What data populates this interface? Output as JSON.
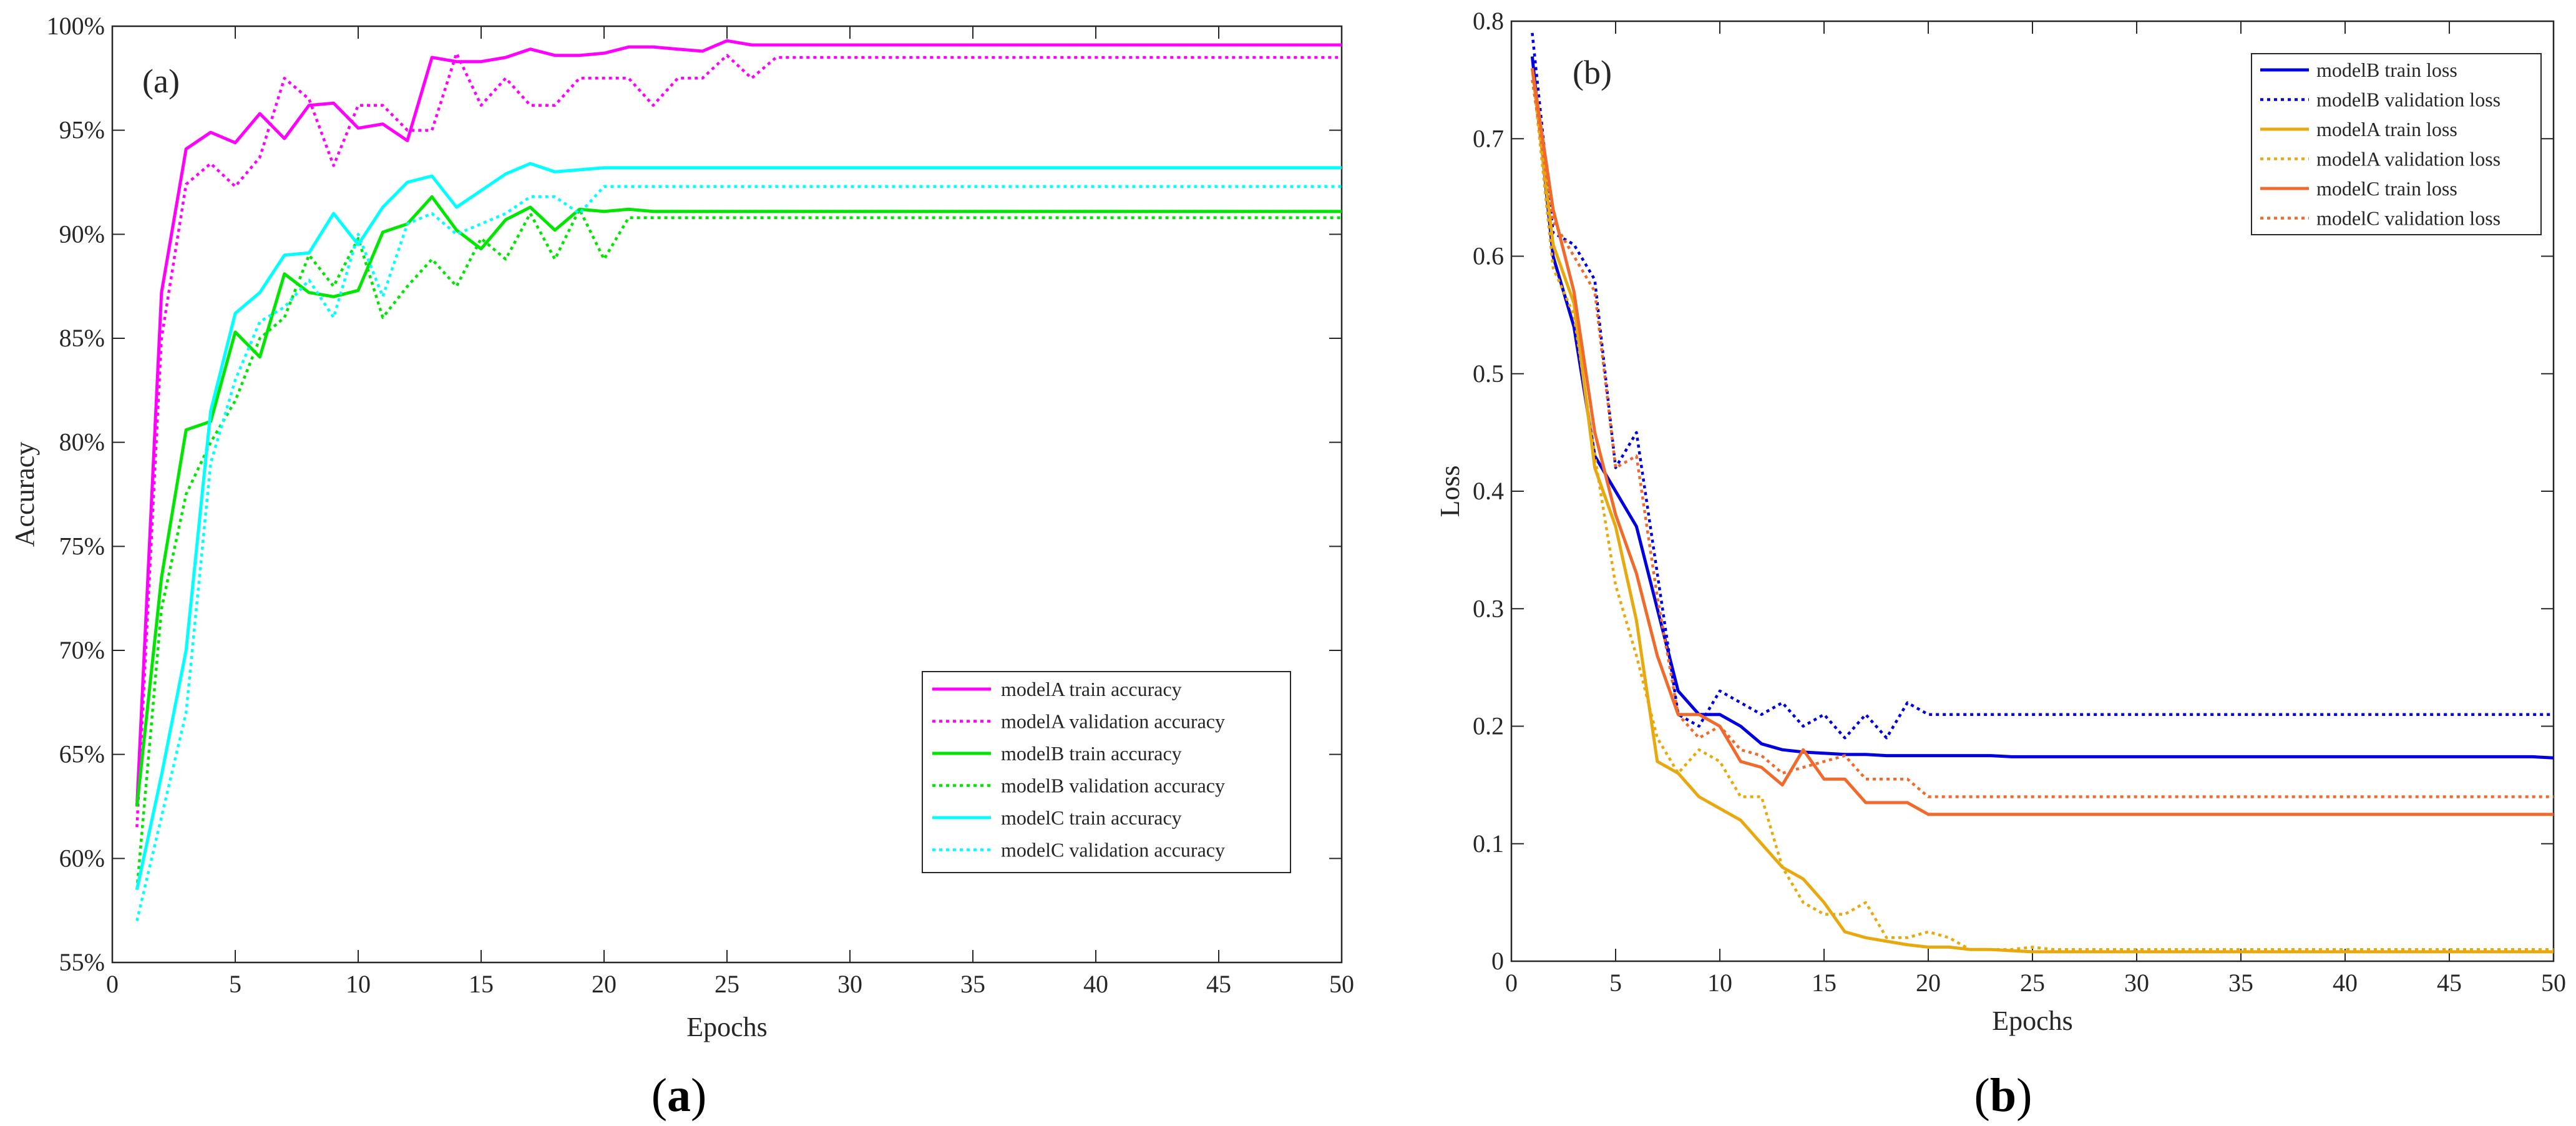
{
  "chart_data": [
    {
      "type": "line",
      "panel_label": "(a)",
      "caption_letter": "a",
      "xlabel": "Epochs",
      "ylabel": "Accuracy",
      "xlim": [
        0,
        50
      ],
      "ylim": [
        55,
        100
      ],
      "xticks": [
        0,
        5,
        10,
        15,
        20,
        25,
        30,
        35,
        40,
        45,
        50
      ],
      "yticks": [
        55,
        60,
        65,
        70,
        75,
        80,
        85,
        90,
        95,
        100
      ],
      "ytick_labels": [
        "55%",
        "60%",
        "65%",
        "70%",
        "75%",
        "80%",
        "85%",
        "90%",
        "95%",
        "100%"
      ],
      "grid": false,
      "legend_position": "bottom-right",
      "x": [
        1,
        2,
        3,
        4,
        5,
        6,
        7,
        8,
        9,
        10,
        11,
        12,
        13,
        14,
        15,
        16,
        17,
        18,
        19,
        20,
        21,
        22,
        23,
        24,
        25,
        26,
        27,
        28,
        29,
        30,
        31,
        32,
        33,
        34,
        35,
        36,
        37,
        38,
        39,
        40,
        41,
        42,
        43,
        44,
        45,
        46,
        47,
        48,
        49,
        50
      ],
      "series": [
        {
          "name": "modelA train accuracy",
          "color": "#ff00ff",
          "dash": "solid",
          "values": [
            62.5,
            87.2,
            94.1,
            94.9,
            94.4,
            95.8,
            94.6,
            96.2,
            96.3,
            95.1,
            95.3,
            94.5,
            98.5,
            98.3,
            98.3,
            98.5,
            98.9,
            98.6,
            98.6,
            98.7,
            99.0,
            99.0,
            98.9,
            98.8,
            99.3,
            99.1,
            99.1,
            99.1,
            99.1,
            99.1,
            99.1,
            99.1,
            99.1,
            99.1,
            99.1,
            99.1,
            99.1,
            99.1,
            99.1,
            99.1,
            99.1,
            99.1,
            99.1,
            99.1,
            99.1,
            99.1,
            99.1,
            99.1,
            99.1,
            99.1
          ]
        },
        {
          "name": "modelA validation accuracy",
          "color": "#ff00ff",
          "dash": "dotted",
          "values": [
            61.5,
            85.0,
            92.4,
            93.4,
            92.3,
            93.7,
            97.5,
            96.5,
            93.3,
            96.2,
            96.2,
            95.0,
            95.0,
            98.7,
            96.2,
            97.5,
            96.2,
            96.2,
            97.5,
            97.5,
            97.5,
            96.2,
            97.5,
            97.5,
            98.6,
            97.5,
            98.5,
            98.5,
            98.5,
            98.5,
            98.5,
            98.5,
            98.5,
            98.5,
            98.5,
            98.5,
            98.5,
            98.5,
            98.5,
            98.5,
            98.5,
            98.5,
            98.5,
            98.5,
            98.5,
            98.5,
            98.5,
            98.5,
            98.5,
            98.5
          ]
        },
        {
          "name": "modelB train accuracy",
          "color": "#00e600",
          "dash": "solid",
          "values": [
            62.5,
            73.5,
            80.6,
            81.0,
            85.3,
            84.1,
            88.1,
            87.2,
            87.0,
            87.3,
            90.1,
            90.5,
            91.8,
            90.2,
            89.3,
            90.7,
            91.3,
            90.2,
            91.2,
            91.1,
            91.2,
            91.1,
            91.1,
            91.1,
            91.1,
            91.1,
            91.1,
            91.1,
            91.1,
            91.1,
            91.1,
            91.1,
            91.1,
            91.1,
            91.1,
            91.1,
            91.1,
            91.1,
            91.1,
            91.1,
            91.1,
            91.1,
            91.1,
            91.1,
            91.1,
            91.1,
            91.1,
            91.1,
            91.1,
            91.1
          ]
        },
        {
          "name": "modelB validation accuracy",
          "color": "#00e600",
          "dash": "dotted",
          "values": [
            58.5,
            72.0,
            77.5,
            80.0,
            82.0,
            85.0,
            86.0,
            89.0,
            87.5,
            89.8,
            86.0,
            87.5,
            88.8,
            87.5,
            89.8,
            88.8,
            91.0,
            88.8,
            91.2,
            88.8,
            90.8,
            90.8,
            90.8,
            90.8,
            90.8,
            90.8,
            90.8,
            90.8,
            90.8,
            90.8,
            90.8,
            90.8,
            90.8,
            90.8,
            90.8,
            90.8,
            90.8,
            90.8,
            90.8,
            90.8,
            90.8,
            90.8,
            90.8,
            90.8,
            90.8,
            90.8,
            90.8,
            90.8,
            90.8,
            90.8
          ]
        },
        {
          "name": "modelC train accuracy",
          "color": "#00ffff",
          "dash": "solid",
          "values": [
            58.5,
            64.0,
            70.0,
            81.5,
            86.2,
            87.2,
            89.0,
            89.1,
            91.0,
            89.5,
            91.3,
            92.5,
            92.8,
            91.3,
            92.1,
            92.9,
            93.4,
            93.0,
            93.1,
            93.2,
            93.2,
            93.2,
            93.2,
            93.2,
            93.2,
            93.2,
            93.2,
            93.2,
            93.2,
            93.2,
            93.2,
            93.2,
            93.2,
            93.2,
            93.2,
            93.2,
            93.2,
            93.2,
            93.2,
            93.2,
            93.2,
            93.2,
            93.2,
            93.2,
            93.2,
            93.2,
            93.2,
            93.2,
            93.2,
            93.2
          ]
        },
        {
          "name": "modelC validation accuracy",
          "color": "#00ffff",
          "dash": "dotted",
          "values": [
            57.0,
            62.0,
            67.0,
            79.0,
            83.0,
            85.8,
            86.5,
            87.8,
            86.0,
            90.0,
            87.0,
            90.5,
            91.0,
            90.0,
            90.5,
            91.0,
            91.8,
            91.8,
            91.0,
            92.3,
            92.3,
            92.3,
            92.3,
            92.3,
            92.3,
            92.3,
            92.3,
            92.3,
            92.3,
            92.3,
            92.3,
            92.3,
            92.3,
            92.3,
            92.3,
            92.3,
            92.3,
            92.3,
            92.3,
            92.3,
            92.3,
            92.3,
            92.3,
            92.3,
            92.3,
            92.3,
            92.3,
            92.3,
            92.3,
            92.3
          ]
        }
      ]
    },
    {
      "type": "line",
      "panel_label": "(b)",
      "caption_letter": "b",
      "xlabel": "Epochs",
      "ylabel": "Loss",
      "xlim": [
        0,
        50
      ],
      "ylim": [
        0,
        0.8
      ],
      "xticks": [
        0,
        5,
        10,
        15,
        20,
        25,
        30,
        35,
        40,
        45,
        50
      ],
      "yticks": [
        0,
        0.1,
        0.2,
        0.3,
        0.4,
        0.5,
        0.6,
        0.7,
        0.8
      ],
      "ytick_labels": [
        "0",
        "0.1",
        "0.2",
        "0.3",
        "0.4",
        "0.5",
        "0.6",
        "0.7",
        "0.8"
      ],
      "grid": false,
      "legend_position": "top-right",
      "x": [
        1,
        2,
        3,
        4,
        5,
        6,
        7,
        8,
        9,
        10,
        11,
        12,
        13,
        14,
        15,
        16,
        17,
        18,
        19,
        20,
        21,
        22,
        23,
        24,
        25,
        26,
        27,
        28,
        29,
        30,
        31,
        32,
        33,
        34,
        35,
        36,
        37,
        38,
        39,
        40,
        41,
        42,
        43,
        44,
        45,
        46,
        47,
        48,
        49,
        50
      ],
      "series": [
        {
          "name": "modelB train loss",
          "color": "#0000e0",
          "dash": "solid",
          "values": [
            0.77,
            0.6,
            0.54,
            0.43,
            0.4,
            0.37,
            0.3,
            0.23,
            0.21,
            0.21,
            0.2,
            0.185,
            0.18,
            0.178,
            0.177,
            0.176,
            0.176,
            0.175,
            0.175,
            0.175,
            0.175,
            0.175,
            0.175,
            0.174,
            0.174,
            0.174,
            0.174,
            0.174,
            0.174,
            0.174,
            0.174,
            0.174,
            0.174,
            0.174,
            0.174,
            0.174,
            0.174,
            0.174,
            0.174,
            0.174,
            0.174,
            0.174,
            0.174,
            0.174,
            0.174,
            0.174,
            0.174,
            0.174,
            0.174,
            0.173
          ]
        },
        {
          "name": "modelB validation loss",
          "color": "#0000e0",
          "dash": "dotted",
          "values": [
            0.79,
            0.62,
            0.61,
            0.58,
            0.42,
            0.45,
            0.33,
            0.21,
            0.2,
            0.23,
            0.22,
            0.21,
            0.22,
            0.2,
            0.21,
            0.19,
            0.21,
            0.19,
            0.22,
            0.21,
            0.21,
            0.21,
            0.21,
            0.21,
            0.21,
            0.21,
            0.21,
            0.21,
            0.21,
            0.21,
            0.21,
            0.21,
            0.21,
            0.21,
            0.21,
            0.21,
            0.21,
            0.21,
            0.21,
            0.21,
            0.21,
            0.21,
            0.21,
            0.21,
            0.21,
            0.21,
            0.21,
            0.21,
            0.21,
            0.21
          ]
        },
        {
          "name": "modelA train loss",
          "color": "#e8a90f",
          "dash": "solid",
          "values": [
            0.76,
            0.61,
            0.56,
            0.42,
            0.37,
            0.29,
            0.17,
            0.16,
            0.14,
            0.13,
            0.12,
            0.1,
            0.08,
            0.07,
            0.05,
            0.025,
            0.02,
            0.017,
            0.014,
            0.012,
            0.012,
            0.01,
            0.01,
            0.009,
            0.008,
            0.008,
            0.008,
            0.008,
            0.008,
            0.008,
            0.008,
            0.008,
            0.008,
            0.008,
            0.008,
            0.008,
            0.008,
            0.008,
            0.008,
            0.008,
            0.008,
            0.008,
            0.008,
            0.008,
            0.008,
            0.008,
            0.008,
            0.008,
            0.008,
            0.008
          ]
        },
        {
          "name": "modelA validation loss",
          "color": "#e8a90f",
          "dash": "dotted",
          "values": [
            0.76,
            0.59,
            0.55,
            0.43,
            0.32,
            0.26,
            0.19,
            0.16,
            0.18,
            0.17,
            0.14,
            0.14,
            0.08,
            0.05,
            0.04,
            0.04,
            0.05,
            0.02,
            0.02,
            0.025,
            0.02,
            0.01,
            0.01,
            0.01,
            0.012,
            0.01,
            0.01,
            0.01,
            0.01,
            0.01,
            0.01,
            0.01,
            0.01,
            0.01,
            0.01,
            0.01,
            0.01,
            0.01,
            0.01,
            0.01,
            0.01,
            0.01,
            0.01,
            0.01,
            0.01,
            0.01,
            0.01,
            0.01,
            0.01,
            0.01
          ]
        },
        {
          "name": "modelC train loss",
          "color": "#f06a2c",
          "dash": "solid",
          "values": [
            0.76,
            0.64,
            0.57,
            0.45,
            0.38,
            0.33,
            0.26,
            0.21,
            0.21,
            0.2,
            0.17,
            0.165,
            0.15,
            0.18,
            0.155,
            0.155,
            0.135,
            0.135,
            0.135,
            0.125,
            0.125,
            0.125,
            0.125,
            0.125,
            0.125,
            0.125,
            0.125,
            0.125,
            0.125,
            0.125,
            0.125,
            0.125,
            0.125,
            0.125,
            0.125,
            0.125,
            0.125,
            0.125,
            0.125,
            0.125,
            0.125,
            0.125,
            0.125,
            0.125,
            0.125,
            0.125,
            0.125,
            0.125,
            0.125,
            0.125
          ]
        },
        {
          "name": "modelC validation loss",
          "color": "#f06a2c",
          "dash": "dotted",
          "values": [
            0.75,
            0.63,
            0.6,
            0.57,
            0.42,
            0.43,
            0.31,
            0.21,
            0.19,
            0.2,
            0.18,
            0.175,
            0.16,
            0.165,
            0.17,
            0.175,
            0.155,
            0.155,
            0.155,
            0.14,
            0.14,
            0.14,
            0.14,
            0.14,
            0.14,
            0.14,
            0.14,
            0.14,
            0.14,
            0.14,
            0.14,
            0.14,
            0.14,
            0.14,
            0.14,
            0.14,
            0.14,
            0.14,
            0.14,
            0.14,
            0.14,
            0.14,
            0.14,
            0.14,
            0.14,
            0.14,
            0.14,
            0.14,
            0.14,
            0.14
          ]
        }
      ]
    }
  ]
}
